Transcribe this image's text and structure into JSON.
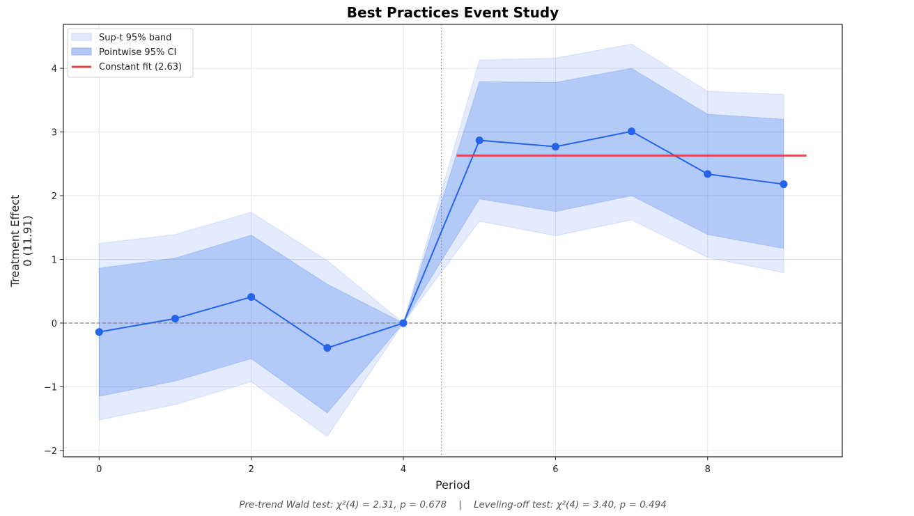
{
  "chart_data": {
    "type": "line",
    "title": "Best Practices Event Study",
    "xlabel": "Period",
    "ylabel_line1": "Treatment Effect",
    "ylabel_line2": "0 (11.91)",
    "xlim": [
      -0.47,
      9.77
    ],
    "ylim": [
      -2.1,
      4.69
    ],
    "xticks": [
      0,
      2,
      4,
      6,
      8
    ],
    "yticks": [
      -2,
      -1,
      0,
      1,
      2,
      3,
      4
    ],
    "ytick_labels": [
      "−2",
      "−1",
      "0",
      "1",
      "2",
      "3",
      "4"
    ],
    "grid": true,
    "legend_position": "top-left",
    "x": [
      0,
      1,
      2,
      3,
      4,
      5,
      6,
      7,
      8,
      9
    ],
    "estimate": [
      -0.14,
      0.07,
      0.41,
      -0.39,
      0.0,
      2.87,
      2.77,
      3.01,
      2.34,
      2.18
    ],
    "pointwise_ci_lower": [
      -1.15,
      -0.91,
      -0.56,
      -1.41,
      0.0,
      1.95,
      1.75,
      2.0,
      1.39,
      1.17
    ],
    "pointwise_ci_upper": [
      0.86,
      1.02,
      1.38,
      0.61,
      0.0,
      3.79,
      3.78,
      4.0,
      3.28,
      3.2
    ],
    "supt_band_lower": [
      -1.52,
      -1.28,
      -0.92,
      -1.78,
      0.0,
      1.6,
      1.37,
      1.62,
      1.03,
      0.79
    ],
    "supt_band_upper": [
      1.25,
      1.39,
      1.74,
      0.98,
      0.0,
      4.13,
      4.16,
      4.38,
      3.64,
      3.59
    ],
    "reference_line_y": 0,
    "treatment_line_x": 4.5,
    "constant_fit": {
      "value": 2.63,
      "x_start": 4.7,
      "x_end": 9.3
    },
    "legend": [
      {
        "label": "Sup-t 95% band",
        "kind": "patch",
        "color": "#c9d7f5"
      },
      {
        "label": "Pointwise 95% CI",
        "kind": "patch",
        "color": "#a9c1f2"
      },
      {
        "label": "Constant fit (2.63)",
        "kind": "line",
        "color": "#e04848"
      }
    ],
    "colors": {
      "estimate": "#2563eb",
      "pointwise_ci": "#2563eb",
      "supt_band": "#2563eb",
      "constant_fit": "#dc3a3a",
      "reference": "#888888"
    },
    "footnote": "Pre-trend Wald test: χ²(4) = 2.31, p = 0.678    |    Leveling-off test: χ²(4) = 3.40, p = 0.494"
  }
}
